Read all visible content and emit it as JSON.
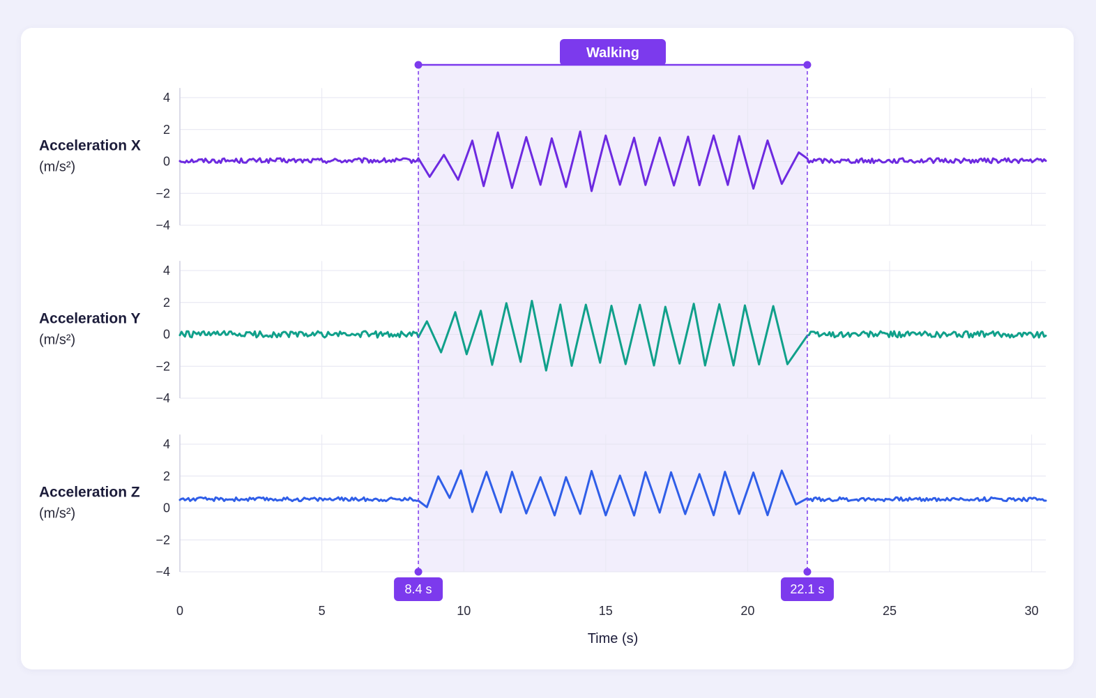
{
  "chart_data": {
    "type": "line",
    "xlabel": "Time (s)",
    "xlim": [
      0,
      30.5
    ],
    "xticks": [
      0,
      5,
      10,
      15,
      20,
      25,
      30
    ],
    "ylim": [
      -4,
      4.6
    ],
    "yticks": [
      4,
      2,
      0,
      -2,
      -4
    ],
    "grid": true,
    "colors": {
      "x": "#6d2ae0",
      "y": "#10a08a",
      "z": "#2f5ee8",
      "accent": "#7c3aed",
      "band": "#ede7fb"
    },
    "annotation": {
      "label": "Walking",
      "start": 8.4,
      "end": 22.1,
      "start_label": "8.4 s",
      "end_label": "22.1 s"
    },
    "panels": [
      {
        "id": "x",
        "label": "Acceleration X",
        "unit": "(m/s²)",
        "baseline": 0.05,
        "noise": 0.15,
        "walking_amplitude": 1.4,
        "walking_mean": 0.0,
        "step_period_s": 0.95,
        "points": [
          [
            0.0,
            0.0
          ],
          [
            8.4,
            0.05
          ],
          [
            8.8,
            -0.9
          ],
          [
            9.3,
            0.4
          ],
          [
            9.8,
            -1.1
          ],
          [
            10.3,
            1.3
          ],
          [
            10.7,
            -1.6
          ],
          [
            11.2,
            1.8
          ],
          [
            11.7,
            -1.6
          ],
          [
            12.2,
            1.5
          ],
          [
            12.7,
            -1.5
          ],
          [
            13.1,
            1.5
          ],
          [
            13.6,
            -1.6
          ],
          [
            14.1,
            1.8
          ],
          [
            14.5,
            -1.8
          ],
          [
            15.0,
            1.6
          ],
          [
            15.5,
            -1.5
          ],
          [
            16.0,
            1.5
          ],
          [
            16.4,
            -1.5
          ],
          [
            16.9,
            1.5
          ],
          [
            17.4,
            -1.5
          ],
          [
            17.9,
            1.5
          ],
          [
            18.3,
            -1.5
          ],
          [
            18.8,
            1.6
          ],
          [
            19.3,
            -1.5
          ],
          [
            19.7,
            1.6
          ],
          [
            20.2,
            -1.7
          ],
          [
            20.7,
            1.3
          ],
          [
            21.2,
            -1.4
          ],
          [
            21.8,
            0.6
          ],
          [
            22.1,
            0.0
          ],
          [
            30.5,
            -0.1
          ]
        ]
      },
      {
        "id": "y",
        "label": "Acceleration Y",
        "unit": "(m/s²)",
        "baseline": 0.0,
        "noise": 0.2,
        "walking_amplitude": 1.7,
        "walking_mean": -0.1,
        "step_period_s": 0.95,
        "points": [
          [
            0.0,
            -0.1
          ],
          [
            8.4,
            0.0
          ],
          [
            8.7,
            0.8
          ],
          [
            9.2,
            -1.2
          ],
          [
            9.7,
            1.4
          ],
          [
            10.1,
            -1.3
          ],
          [
            10.6,
            1.5
          ],
          [
            11.0,
            -1.9
          ],
          [
            11.5,
            1.9
          ],
          [
            12.0,
            -1.7
          ],
          [
            12.4,
            2.1
          ],
          [
            12.9,
            -2.2
          ],
          [
            13.4,
            1.9
          ],
          [
            13.8,
            -1.9
          ],
          [
            14.3,
            1.8
          ],
          [
            14.8,
            -1.8
          ],
          [
            15.2,
            1.8
          ],
          [
            15.7,
            -1.9
          ],
          [
            16.2,
            1.8
          ],
          [
            16.7,
            -1.9
          ],
          [
            17.1,
            1.8
          ],
          [
            17.6,
            -1.8
          ],
          [
            18.1,
            1.9
          ],
          [
            18.5,
            -1.9
          ],
          [
            19.0,
            1.9
          ],
          [
            19.5,
            -1.9
          ],
          [
            19.9,
            1.8
          ],
          [
            20.4,
            -1.9
          ],
          [
            20.9,
            1.8
          ],
          [
            21.4,
            -1.9
          ],
          [
            22.1,
            -1.0
          ],
          [
            30.5,
            0.0
          ]
        ]
      },
      {
        "id": "z",
        "label": "Acceleration Z",
        "unit": "(m/s²)",
        "baseline": 0.55,
        "noise": 0.12,
        "walking_amplitude": 1.3,
        "walking_mean": 0.9,
        "step_period_s": 0.95,
        "points": [
          [
            0.0,
            0.6
          ],
          [
            8.4,
            0.55
          ],
          [
            8.7,
            0.1
          ],
          [
            9.1,
            2.0
          ],
          [
            9.5,
            0.6
          ],
          [
            9.9,
            2.4
          ],
          [
            10.3,
            -0.3
          ],
          [
            10.8,
            2.3
          ],
          [
            11.3,
            -0.3
          ],
          [
            11.7,
            2.2
          ],
          [
            12.2,
            -0.3
          ],
          [
            12.7,
            2.0
          ],
          [
            13.2,
            -0.4
          ],
          [
            13.6,
            2.0
          ],
          [
            14.1,
            -0.4
          ],
          [
            14.5,
            2.3
          ],
          [
            15.0,
            -0.4
          ],
          [
            15.5,
            2.1
          ],
          [
            16.0,
            -0.4
          ],
          [
            16.4,
            2.2
          ],
          [
            16.9,
            -0.3
          ],
          [
            17.3,
            2.2
          ],
          [
            17.8,
            -0.4
          ],
          [
            18.3,
            2.1
          ],
          [
            18.8,
            -0.4
          ],
          [
            19.2,
            2.2
          ],
          [
            19.7,
            -0.4
          ],
          [
            20.2,
            2.2
          ],
          [
            20.7,
            -0.4
          ],
          [
            21.2,
            2.4
          ],
          [
            21.7,
            0.2
          ],
          [
            22.1,
            0.3
          ],
          [
            30.5,
            0.45
          ]
        ]
      }
    ]
  }
}
